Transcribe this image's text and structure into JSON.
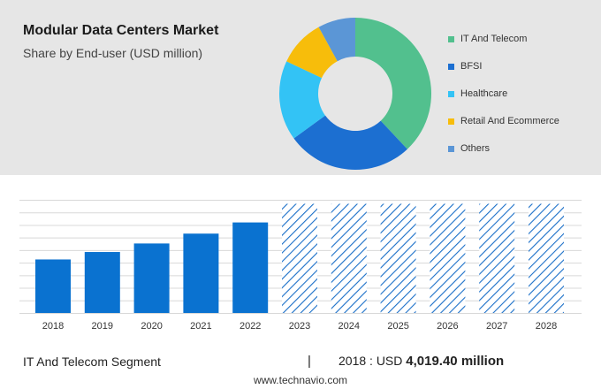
{
  "header": {
    "title": "Modular Data Centers Market",
    "subtitle": "Share by End-user (USD million)"
  },
  "chart_data": [
    {
      "type": "pie",
      "donut": true,
      "title": "Modular Data Centers Market",
      "subtitle": "Share by End-user (USD million)",
      "legend_position": "right",
      "slices": [
        {
          "label": "IT And Telecom",
          "value": 38,
          "color": "#52c08e"
        },
        {
          "label": "BFSI",
          "value": 27,
          "color": "#1c6fd1"
        },
        {
          "label": "Healthcare",
          "value": 17,
          "color": "#33c3f5"
        },
        {
          "label": "Retail And Ecommerce",
          "value": 10,
          "color": "#f7bd0b"
        },
        {
          "label": "Others",
          "value": 8,
          "color": "#5b96d6"
        }
      ]
    },
    {
      "type": "bar",
      "categories": [
        "2018",
        "2019",
        "2020",
        "2021",
        "2022",
        "2023",
        "2024",
        "2025",
        "2026",
        "2027",
        "2028"
      ],
      "values": [
        4019.4,
        4580,
        5220,
        5960,
        6800,
        8200,
        8200,
        8200,
        8200,
        8200,
        8200
      ],
      "forecast_from": "2023",
      "ylim": [
        0,
        8500
      ],
      "grid": true,
      "colors": {
        "actual": "#0a72d0",
        "forecast": "#1a6fc8"
      }
    }
  ],
  "footer": {
    "segment": "IT And Telecom Segment",
    "separator": "|",
    "value_prefix": "2018 : USD ",
    "value_bold": "4,019.40 million",
    "site": "www.technavio.com"
  }
}
